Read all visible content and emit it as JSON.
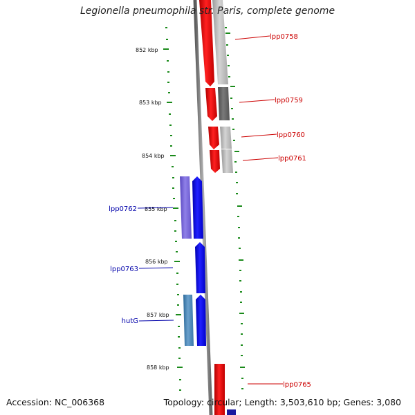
{
  "title": "Legionella pneumophila str. Paris, complete genome",
  "footer": {
    "accession": "Accession: NC_006368",
    "summary": "Topology: circular; Length: 3,503,610 bp; Genes: 3,080"
  },
  "colors": {
    "backbone": "#8a8a8a",
    "tick": "#1a8a1a",
    "forward_gene": "#ff0000",
    "reverse_gene": "#0000ff",
    "forward_label": "#cc0000",
    "reverse_label": "#0000aa",
    "cds_gray_light": "#c0c0c0",
    "cds_gray_dark": "#6e6e6e",
    "cds_purple": "#7b68d8",
    "cds_steelblue": "#4a86b8"
  },
  "kbp_labels": [
    "852 kbp",
    "853 kbp",
    "854 kbp",
    "855 kbp",
    "856 kbp",
    "857 kbp",
    "858 kbp"
  ],
  "gene_labels": {
    "lpp0758": "lpp0758",
    "lpp0759": "lpp0759",
    "lpp0760": "lpp0760",
    "lpp0761": "lpp0761",
    "lpp0762": "lpp0762",
    "lpp0763": "lpp0763",
    "hutG": "hutG",
    "lpp0765": "lpp0765"
  }
}
